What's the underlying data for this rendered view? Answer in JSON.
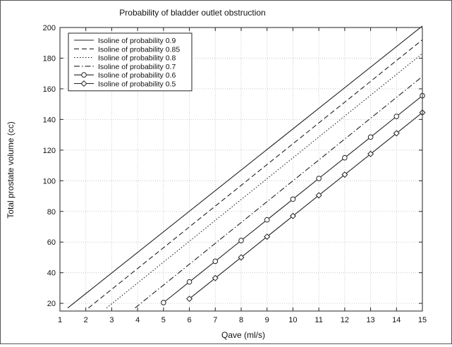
{
  "chart_data": {
    "type": "line",
    "title": "Probability of bladder outlet obstruction",
    "xlabel": "Qave (ml/s)",
    "ylabel": "Total prostate volume (cc)",
    "xlim": [
      1,
      15
    ],
    "ylim": [
      15,
      200
    ],
    "x_ticks": [
      1,
      2,
      3,
      4,
      5,
      6,
      7,
      8,
      9,
      10,
      11,
      12,
      13,
      14,
      15
    ],
    "y_ticks": [
      20,
      40,
      60,
      80,
      100,
      120,
      140,
      160,
      180,
      200
    ],
    "grid": true,
    "legend_position": "top-left",
    "series": [
      {
        "name": "Isoline of probability 0.9",
        "style": "solid",
        "marker": "none",
        "x": [
          1.3,
          15
        ],
        "values": [
          17.0,
          201.0
        ]
      },
      {
        "name": "Isoline of probability 0.85",
        "style": "dashed",
        "marker": "none",
        "x": [
          2.1,
          15
        ],
        "values": [
          17.0,
          192.0
        ]
      },
      {
        "name": "Isoline of probability 0.8",
        "style": "dotted",
        "marker": "none",
        "x": [
          2.8,
          15
        ],
        "values": [
          17.0,
          183.0
        ]
      },
      {
        "name": "Isoline of probability 0.7",
        "style": "dashdot",
        "marker": "none",
        "x": [
          3.9,
          15
        ],
        "values": [
          17.0,
          168.0
        ]
      },
      {
        "name": "Isoline of probability 0.6",
        "style": "solid",
        "marker": "circle",
        "x": [
          5,
          6,
          7,
          8,
          9,
          10,
          11,
          12,
          13,
          14,
          15
        ],
        "values": [
          20.5,
          34.0,
          47.5,
          61.0,
          74.5,
          88.0,
          101.5,
          115.0,
          128.5,
          142.0,
          155.5
        ]
      },
      {
        "name": "Isoline of probability 0.5",
        "style": "solid",
        "marker": "diamond",
        "x": [
          6,
          7,
          8,
          9,
          10,
          11,
          12,
          13,
          14,
          15
        ],
        "values": [
          23.0,
          36.5,
          50.0,
          63.5,
          77.0,
          90.5,
          104.0,
          117.5,
          131.0,
          144.5
        ]
      }
    ]
  }
}
